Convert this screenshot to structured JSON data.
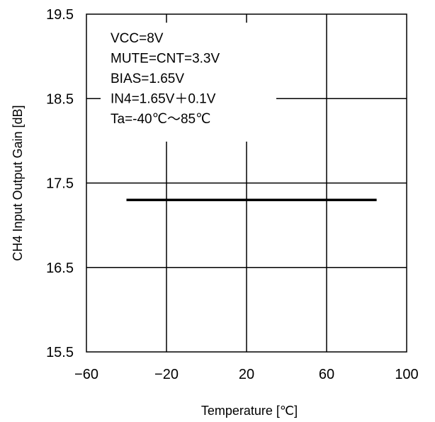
{
  "chart_data": {
    "type": "line",
    "title": "",
    "xlabel": "Temperature [℃]",
    "ylabel": "CH4 Input Output Gain [dB]",
    "xlim": [
      -60,
      100
    ],
    "ylim": [
      15.5,
      19.5
    ],
    "xticks": [
      -60,
      -20,
      20,
      60,
      100
    ],
    "xtick_labels": [
      "−60",
      "−20",
      "20",
      "60",
      "100"
    ],
    "yticks": [
      15.5,
      16.5,
      17.5,
      18.5,
      19.5
    ],
    "ytick_labels": [
      "15.5",
      "16.5",
      "17.5",
      "18.5",
      "19.5"
    ],
    "grid": true,
    "series": [
      {
        "x": [
          -40,
          85
        ],
        "y": [
          17.3,
          17.3
        ],
        "color": "#000000"
      }
    ],
    "annotation_lines": [
      "VCC=8V",
      "MUTE=CNT=3.3V",
      "BIAS=1.65V",
      "IN4=1.65V＋0.1V",
      "Ta=-40℃～85℃"
    ]
  }
}
